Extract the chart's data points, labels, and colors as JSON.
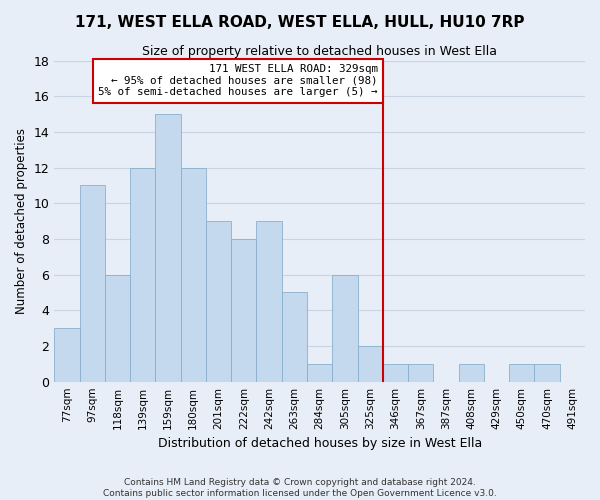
{
  "title": "171, WEST ELLA ROAD, WEST ELLA, HULL, HU10 7RP",
  "subtitle": "Size of property relative to detached houses in West Ella",
  "xlabel": "Distribution of detached houses by size in West Ella",
  "ylabel": "Number of detached properties",
  "bar_color": "#c5d9ee",
  "bar_edge_color": "#8ab0cc",
  "bin_labels": [
    "77sqm",
    "97sqm",
    "118sqm",
    "139sqm",
    "159sqm",
    "180sqm",
    "201sqm",
    "222sqm",
    "242sqm",
    "263sqm",
    "284sqm",
    "305sqm",
    "325sqm",
    "346sqm",
    "367sqm",
    "387sqm",
    "408sqm",
    "429sqm",
    "450sqm",
    "470sqm",
    "491sqm"
  ],
  "bar_heights": [
    3,
    11,
    6,
    12,
    15,
    12,
    9,
    8,
    9,
    5,
    1,
    6,
    2,
    1,
    1,
    0,
    1,
    0,
    1,
    1,
    0
  ],
  "ylim": [
    0,
    18
  ],
  "yticks": [
    0,
    2,
    4,
    6,
    8,
    10,
    12,
    14,
    16,
    18
  ],
  "vline_x": 12.5,
  "vline_color": "#cc0000",
  "annotation_title": "171 WEST ELLA ROAD: 329sqm",
  "annotation_line1": "← 95% of detached houses are smaller (98)",
  "annotation_line2": "5% of semi-detached houses are larger (5) →",
  "annotation_box_color": "#ffffff",
  "annotation_box_edge": "#cc0000",
  "footer1": "Contains HM Land Registry data © Crown copyright and database right 2024.",
  "footer2": "Contains public sector information licensed under the Open Government Licence v3.0.",
  "background_color": "#e8eef7",
  "grid_color": "#c8d4e4"
}
